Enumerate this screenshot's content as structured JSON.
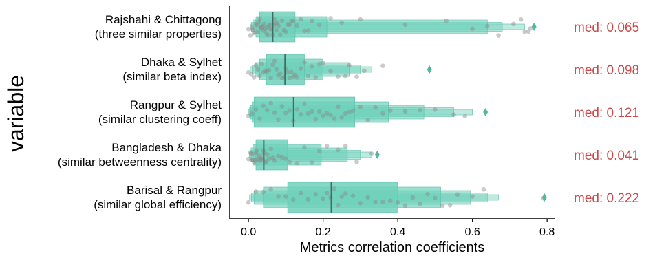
{
  "chart_data": {
    "type": "boxen-strip",
    "xlabel": "Metrics correlation coefficients",
    "ylabel": "variable",
    "xlim": [
      -0.05,
      0.82
    ],
    "xticks": [
      0.0,
      0.2,
      0.4,
      0.6,
      0.8
    ],
    "xtick_labels": [
      "0.0",
      "0.2",
      "0.4",
      "0.6",
      "0.8"
    ],
    "grid": false,
    "colors": {
      "box": "#6fd1bb",
      "box_edge": "#5cbfa8",
      "median": "#3f6b61",
      "points": "#8a8a8a",
      "annotation": "#c94a4a",
      "outlier": "#4fb89e"
    },
    "categories": [
      {
        "label_line1": "Rajshahi & Chittagong",
        "label_line2": "(three similar properties)",
        "median": 0.065,
        "median_text": "med: 0.065",
        "levels": [
          {
            "lo": 0.03,
            "hi": 0.125
          },
          {
            "lo": 0.02,
            "hi": 0.21
          },
          {
            "lo": 0.012,
            "hi": 0.64
          },
          {
            "lo": 0.008,
            "hi": 0.68
          },
          {
            "lo": 0.005,
            "hi": 0.74
          }
        ],
        "outliers": [
          0.765
        ],
        "points": [
          0.0,
          0.005,
          0.01,
          0.012,
          0.015,
          0.02,
          0.022,
          0.025,
          0.028,
          0.03,
          0.032,
          0.035,
          0.038,
          0.04,
          0.042,
          0.045,
          0.048,
          0.05,
          0.052,
          0.055,
          0.058,
          0.06,
          0.062,
          0.065,
          0.068,
          0.07,
          0.072,
          0.075,
          0.078,
          0.08,
          0.085,
          0.09,
          0.095,
          0.1,
          0.105,
          0.11,
          0.115,
          0.12,
          0.13,
          0.14,
          0.15,
          0.16,
          0.17,
          0.19,
          0.22,
          0.25,
          0.3,
          0.42,
          0.53,
          0.6,
          0.64,
          0.67,
          0.71,
          0.73,
          0.74,
          0.75,
          0.755
        ]
      },
      {
        "label_line1": "Dhaka & Sylhet",
        "label_line2": "(similar beta index)",
        "median": 0.098,
        "median_text": "med: 0.098",
        "levels": [
          {
            "lo": 0.048,
            "hi": 0.15
          },
          {
            "lo": 0.03,
            "hi": 0.2
          },
          {
            "lo": 0.018,
            "hi": 0.27
          },
          {
            "lo": 0.01,
            "hi": 0.3
          },
          {
            "lo": 0.005,
            "hi": 0.33
          }
        ],
        "outliers": [
          0.485
        ],
        "points": [
          0.0,
          0.008,
          0.015,
          0.02,
          0.025,
          0.03,
          0.035,
          0.04,
          0.045,
          0.05,
          0.055,
          0.06,
          0.065,
          0.07,
          0.075,
          0.08,
          0.085,
          0.09,
          0.095,
          0.1,
          0.105,
          0.11,
          0.115,
          0.12,
          0.125,
          0.13,
          0.14,
          0.15,
          0.16,
          0.17,
          0.18,
          0.19,
          0.2,
          0.22,
          0.24,
          0.26,
          0.27,
          0.29,
          0.31,
          0.36
        ]
      },
      {
        "label_line1": "Rangpur & Sylhet",
        "label_line2": "(similar clustering coeff)",
        "median": 0.121,
        "median_text": "med: 0.121",
        "levels": [
          {
            "lo": 0.015,
            "hi": 0.285
          },
          {
            "lo": 0.01,
            "hi": 0.375
          },
          {
            "lo": 0.006,
            "hi": 0.47
          },
          {
            "lo": 0.003,
            "hi": 0.55
          },
          {
            "lo": 0.001,
            "hi": 0.6
          }
        ],
        "outliers": [
          0.635
        ],
        "points": [
          0.0,
          0.01,
          0.02,
          0.03,
          0.04,
          0.05,
          0.06,
          0.07,
          0.08,
          0.09,
          0.1,
          0.11,
          0.12,
          0.13,
          0.14,
          0.15,
          0.16,
          0.17,
          0.18,
          0.19,
          0.2,
          0.21,
          0.22,
          0.23,
          0.24,
          0.25,
          0.26,
          0.27,
          0.28,
          0.3,
          0.32,
          0.34,
          0.36,
          0.38,
          0.42,
          0.46,
          0.5,
          0.55,
          0.58
        ]
      },
      {
        "label_line1": "Bangladesh & Dhaka",
        "label_line2": "(similar betweenness centrality)",
        "median": 0.041,
        "median_text": "med: 0.041",
        "levels": [
          {
            "lo": 0.02,
            "hi": 0.105
          },
          {
            "lo": 0.012,
            "hi": 0.195
          },
          {
            "lo": 0.007,
            "hi": 0.265
          },
          {
            "lo": 0.004,
            "hi": 0.3
          },
          {
            "lo": 0.002,
            "hi": 0.33
          }
        ],
        "outliers": [
          0.345
        ],
        "points": [
          0.0,
          0.005,
          0.008,
          0.01,
          0.012,
          0.015,
          0.018,
          0.02,
          0.022,
          0.025,
          0.028,
          0.03,
          0.032,
          0.035,
          0.038,
          0.04,
          0.042,
          0.045,
          0.048,
          0.05,
          0.055,
          0.06,
          0.065,
          0.07,
          0.08,
          0.09,
          0.1,
          0.11,
          0.13,
          0.15,
          0.17,
          0.19,
          0.21,
          0.24,
          0.26,
          0.29,
          0.33
        ]
      },
      {
        "label_line1": "Barisal & Rangpur",
        "label_line2": "(similar global efficiency)",
        "median": 0.222,
        "median_text": "med: 0.222",
        "levels": [
          {
            "lo": 0.105,
            "hi": 0.4
          },
          {
            "lo": 0.04,
            "hi": 0.515
          },
          {
            "lo": 0.015,
            "hi": 0.595
          },
          {
            "lo": 0.008,
            "hi": 0.64
          },
          {
            "lo": 0.003,
            "hi": 0.67
          }
        ],
        "outliers": [
          0.793
        ],
        "points": [
          0.0,
          0.02,
          0.04,
          0.06,
          0.08,
          0.1,
          0.12,
          0.14,
          0.16,
          0.18,
          0.2,
          0.21,
          0.22,
          0.23,
          0.24,
          0.25,
          0.26,
          0.28,
          0.3,
          0.32,
          0.34,
          0.36,
          0.38,
          0.4,
          0.42,
          0.44,
          0.46,
          0.48,
          0.5,
          0.52,
          0.54,
          0.56,
          0.6,
          0.63,
          0.79
        ]
      }
    ]
  }
}
